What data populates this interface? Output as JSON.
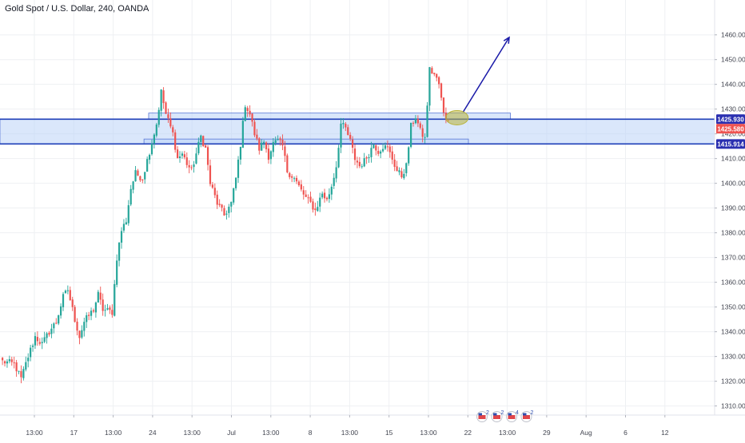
{
  "header": {
    "title": "Gold Spot / U.S. Dollar, 240, OANDA"
  },
  "colors": {
    "up": "#26a69a",
    "down": "#ef5350",
    "grid": "#eef0f3",
    "zone_fill": "#bcd3f7",
    "zone_line": "#1f3fb8",
    "axis_text": "#434651",
    "arrow": "#1a1aa8",
    "highlight": "#b8b33a",
    "price_tag_blue": "#2a2fb0",
    "price_tag_red": "#ef5350"
  },
  "price_axis": {
    "ticks": [
      "1460.000",
      "1450.000",
      "1440.000",
      "1430.000",
      "1420.000",
      "1410.000",
      "1400.000",
      "1390.000",
      "1380.000",
      "1370.000",
      "1360.000",
      "1350.000",
      "1340.000",
      "1330.000",
      "1320.000",
      "1310.000"
    ],
    "tags": [
      {
        "label": "1425.930",
        "price": 1425.93,
        "color": "blue"
      },
      {
        "label": "1425.580",
        "price": 1425.58,
        "color": "red"
      },
      {
        "label": "1415.914",
        "price": 1415.914,
        "color": "blue"
      }
    ]
  },
  "time_axis": {
    "ticks": [
      "13:00",
      "17",
      "13:00",
      "24",
      "13:00",
      "Jul",
      "13:00",
      "8",
      "13:00",
      "15",
      "13:00",
      "22",
      "13:00",
      "29",
      "Aug",
      "6",
      "12"
    ]
  },
  "zones": [
    {
      "top": 1428.4,
      "bottom": 1425.9,
      "from_bar": 63,
      "to_bar": 218
    },
    {
      "top": 1425.9,
      "bottom": 1415.9,
      "from_bar": 0,
      "to_bar": 260
    },
    {
      "top": 1417.9,
      "bottom": 1415.9,
      "from_bar": 61,
      "to_bar": 200
    }
  ],
  "levels": [
    1425.93,
    1415.914
  ],
  "event_badges": [
    "2",
    "2",
    "4",
    "2"
  ],
  "chart_data": {
    "type": "candlestick",
    "symbol": "Gold Spot / U.S. Dollar, 240, OANDA",
    "ylim": [
      1306,
      1467
    ],
    "close_path": [
      [
        0,
        1328
      ],
      [
        5,
        1327
      ],
      [
        8,
        1321
      ],
      [
        11,
        1330
      ],
      [
        14,
        1338
      ],
      [
        17,
        1335
      ],
      [
        20,
        1340
      ],
      [
        23,
        1344
      ],
      [
        26,
        1354
      ],
      [
        28,
        1357
      ],
      [
        31,
        1345
      ],
      [
        33,
        1338
      ],
      [
        35,
        1344
      ],
      [
        39,
        1349
      ],
      [
        41,
        1355
      ],
      [
        43,
        1349
      ],
      [
        47,
        1348
      ],
      [
        49,
        1370
      ],
      [
        51,
        1381
      ],
      [
        53,
        1385
      ],
      [
        55,
        1398
      ],
      [
        57,
        1404
      ],
      [
        60,
        1402
      ],
      [
        63,
        1413
      ],
      [
        66,
        1424
      ],
      [
        68,
        1437
      ],
      [
        70,
        1428
      ],
      [
        73,
        1420
      ],
      [
        75,
        1410
      ],
      [
        77,
        1412
      ],
      [
        79,
        1408
      ],
      [
        81,
        1405
      ],
      [
        85,
        1419
      ],
      [
        87,
        1414
      ],
      [
        89,
        1400
      ],
      [
        92,
        1392
      ],
      [
        95,
        1387
      ],
      [
        98,
        1392
      ],
      [
        100,
        1402
      ],
      [
        102,
        1416
      ],
      [
        104,
        1432
      ],
      [
        106,
        1428
      ],
      [
        108,
        1420
      ],
      [
        110,
        1414
      ],
      [
        112,
        1417
      ],
      [
        114,
        1411
      ],
      [
        116,
        1416
      ],
      [
        118,
        1417
      ],
      [
        120,
        1415
      ],
      [
        122,
        1405
      ],
      [
        125,
        1402
      ],
      [
        128,
        1397
      ],
      [
        130,
        1394
      ],
      [
        132,
        1392
      ],
      [
        134,
        1389
      ],
      [
        137,
        1396
      ],
      [
        139,
        1393
      ],
      [
        141,
        1399
      ],
      [
        143,
        1407
      ],
      [
        145,
        1424
      ],
      [
        147,
        1422
      ],
      [
        149,
        1417
      ],
      [
        151,
        1410
      ],
      [
        153,
        1407
      ],
      [
        155,
        1409
      ],
      [
        157,
        1412
      ],
      [
        159,
        1416
      ],
      [
        161,
        1413
      ],
      [
        163,
        1415
      ],
      [
        165,
        1414
      ],
      [
        167,
        1410
      ],
      [
        169,
        1405
      ],
      [
        171,
        1403
      ],
      [
        173,
        1407
      ],
      [
        175,
        1423
      ],
      [
        177,
        1427
      ],
      [
        179,
        1421
      ],
      [
        181,
        1418
      ],
      [
        183,
        1446
      ],
      [
        185,
        1444
      ],
      [
        187,
        1440
      ],
      [
        189,
        1428
      ],
      [
        191,
        1425.58
      ]
    ]
  }
}
